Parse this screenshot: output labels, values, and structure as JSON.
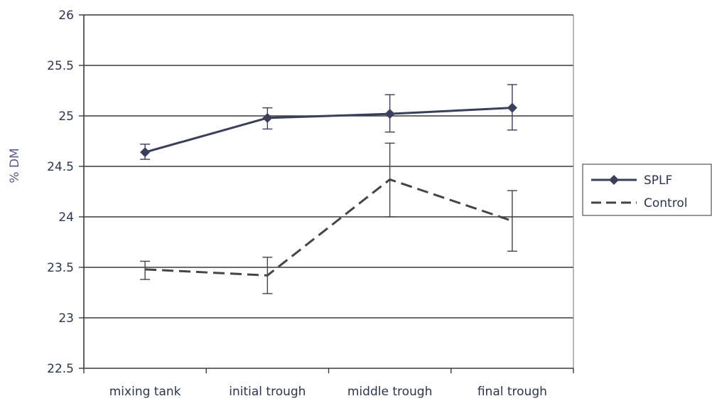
{
  "chart_data": {
    "type": "line",
    "title": "",
    "xlabel": "",
    "ylabel": "% DM",
    "categories": [
      "mixing tank",
      "initial trough",
      "middle trough",
      "final trough"
    ],
    "ylim": [
      22.5,
      26
    ],
    "yticks": [
      22.5,
      23,
      23.5,
      24,
      24.5,
      25,
      25.5,
      26
    ],
    "ytick_labels": [
      "22.5",
      "23",
      "23.5",
      "24",
      "24.5",
      "25",
      "25.5",
      "26"
    ],
    "grid": true,
    "legend_position": "right",
    "series": [
      {
        "name": "SPLF",
        "values": [
          24.64,
          24.98,
          25.02,
          25.08
        ],
        "err_low": [
          24.57,
          24.87,
          24.84,
          24.86
        ],
        "err_high": [
          24.72,
          25.08,
          25.21,
          25.31
        ],
        "style": "solid",
        "marker": "diamond",
        "color": "#3b3f5c"
      },
      {
        "name": "Control",
        "values": [
          23.48,
          23.42,
          24.37,
          23.96
        ],
        "err_low": [
          23.38,
          23.24,
          24.0,
          23.66
        ],
        "err_high": [
          23.56,
          23.6,
          24.73,
          24.26
        ],
        "style": "dashed",
        "marker": "none",
        "color": "#454545"
      }
    ]
  }
}
